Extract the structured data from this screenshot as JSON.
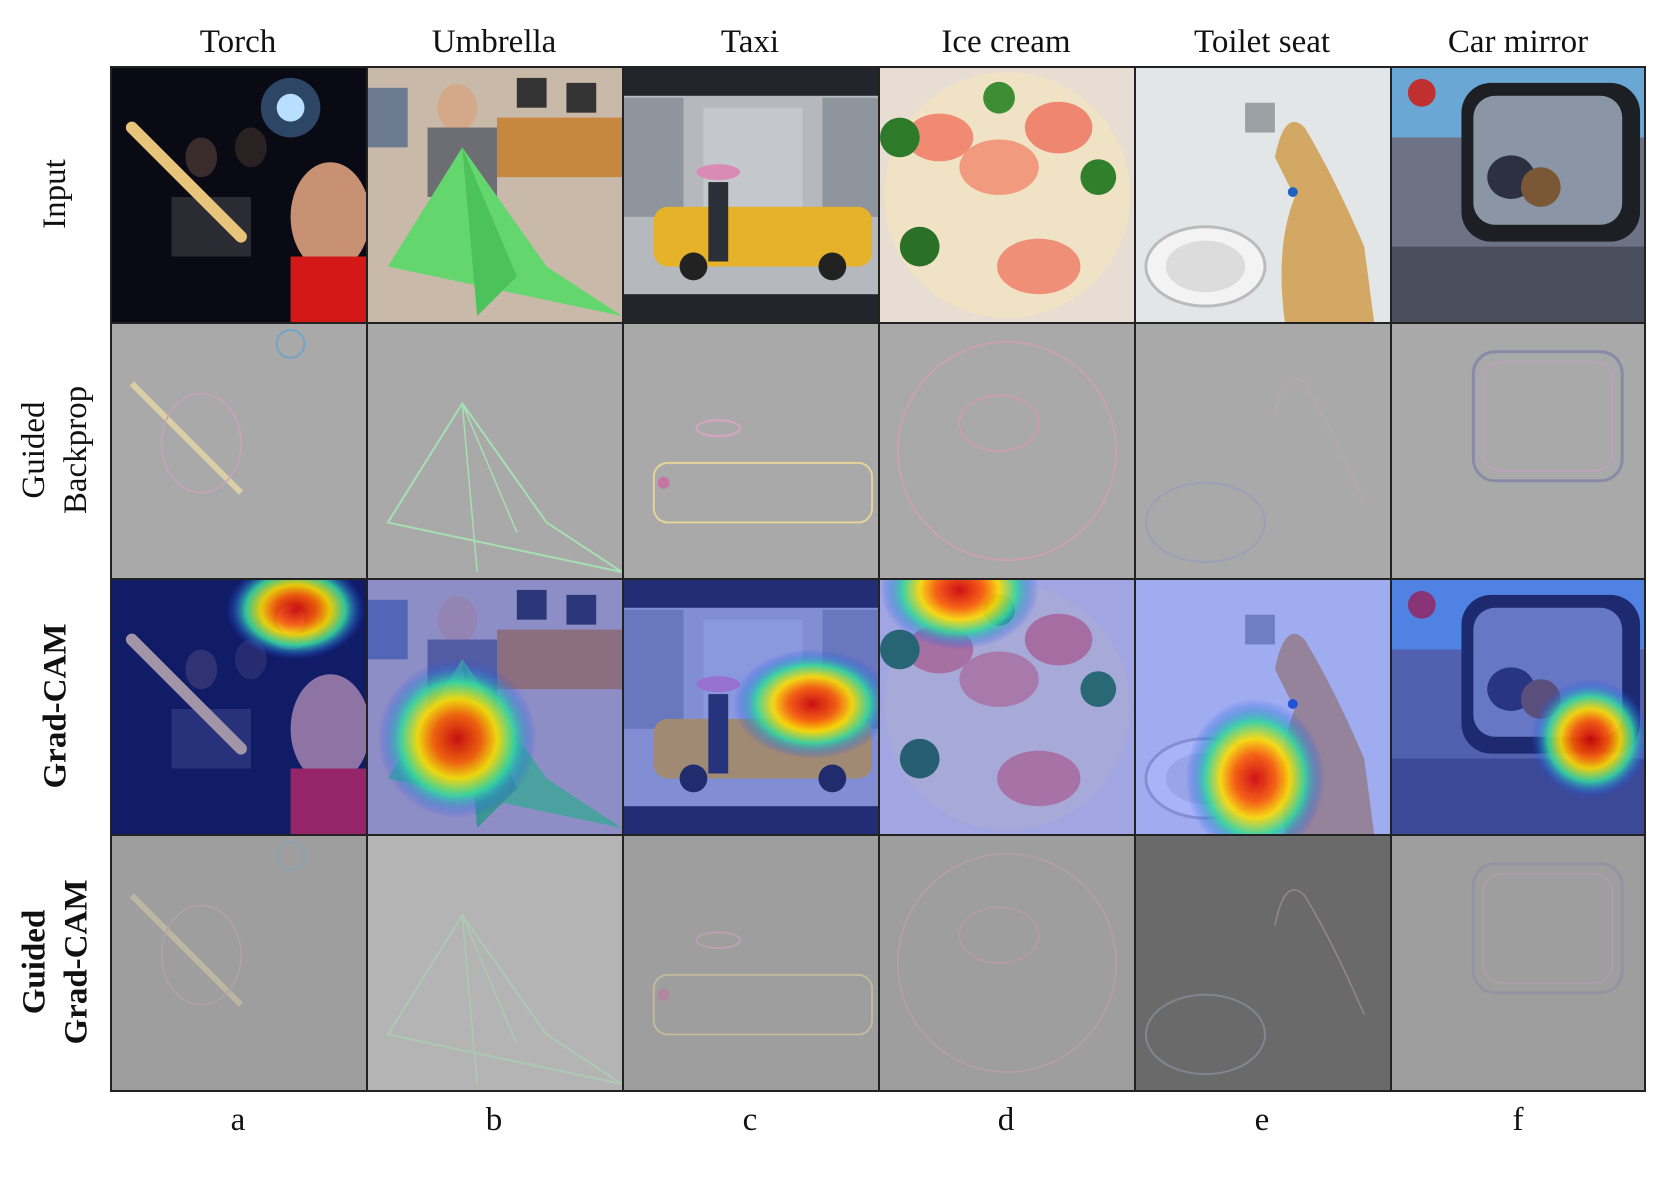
{
  "figure": {
    "columns": [
      {
        "label": "Torch",
        "letter": "a"
      },
      {
        "label": "Umbrella",
        "letter": "b"
      },
      {
        "label": "Taxi",
        "letter": "c"
      },
      {
        "label": "Ice cream",
        "letter": "d"
      },
      {
        "label": "Toilet seat",
        "letter": "e"
      },
      {
        "label": "Car mirror",
        "letter": "f"
      }
    ],
    "rows": [
      {
        "lines": [
          "Input"
        ],
        "bold": false,
        "kind": "input"
      },
      {
        "lines": [
          "Guided",
          "Backprop"
        ],
        "bold": false,
        "kind": "backprop"
      },
      {
        "lines": [
          "Grad-CAM"
        ],
        "bold": true,
        "kind": "gradcam"
      },
      {
        "lines": [
          "Guided",
          "Grad-CAM"
        ],
        "bold": true,
        "kind": "guided-gradcam"
      }
    ],
    "colors": {
      "grid_border": "#222222",
      "backprop_bg": "#a9a9a9",
      "guided_gradcam_bg": "#9e9e9e",
      "heat_hot": "#d40000",
      "heat_warm": "#ffdd00",
      "heat_cool": "#1f3fff"
    }
  }
}
